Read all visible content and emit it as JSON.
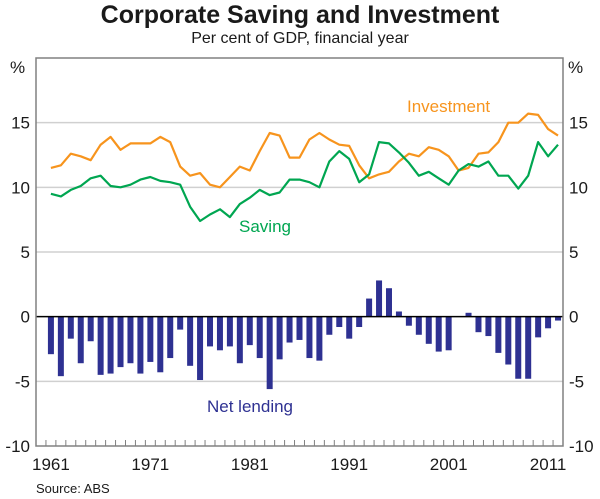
{
  "chart_data": {
    "type": "bar+line",
    "title": "Corporate Saving and Investment",
    "subtitle": "Per cent of GDP, financial year",
    "source": "Source: ABS",
    "ylabel_left": "%",
    "ylabel_right": "%",
    "ylim": [
      -10,
      20
    ],
    "yticks": [
      -10,
      -5,
      0,
      5,
      10,
      15
    ],
    "ytick_labels": [
      "-10",
      "-5",
      "0",
      "5",
      "10",
      "15"
    ],
    "xlim": [
      1960,
      2012
    ],
    "xticks": [
      1961,
      1971,
      1981,
      1991,
      2001,
      2011
    ],
    "xtick_labels": [
      "1961",
      "1971",
      "1981",
      "1991",
      "2001",
      "2011"
    ],
    "grid": true,
    "colors": {
      "investment": "#f7941d",
      "saving": "#00a651",
      "net_lending": "#2e3192",
      "grid": "#d0d0d0",
      "axis": "#808080",
      "zero": "#000000"
    },
    "annotations": [
      {
        "text": "Investment",
        "series": "investment"
      },
      {
        "text": "Saving",
        "series": "saving"
      },
      {
        "text": "Net lending",
        "series": "net_lending"
      }
    ],
    "series": [
      {
        "name": "Investment",
        "type": "line",
        "x": [
          1961,
          1962,
          1963,
          1964,
          1965,
          1966,
          1967,
          1968,
          1969,
          1970,
          1971,
          1972,
          1973,
          1974,
          1975,
          1976,
          1977,
          1978,
          1979,
          1980,
          1981,
          1982,
          1983,
          1984,
          1985,
          1986,
          1987,
          1988,
          1989,
          1990,
          1991,
          1992,
          1993,
          1994,
          1995,
          1996,
          1997,
          1998,
          1999,
          2000,
          2001,
          2002,
          2003,
          2004,
          2005,
          2006,
          2007,
          2008,
          2009,
          2010,
          2011,
          2012
        ],
        "values": [
          11.5,
          11.7,
          12.6,
          12.4,
          12.1,
          13.3,
          13.9,
          12.9,
          13.4,
          13.4,
          13.4,
          13.9,
          13.5,
          11.6,
          10.9,
          11.1,
          10.2,
          10.0,
          10.8,
          11.6,
          11.3,
          12.8,
          14.2,
          14.0,
          12.3,
          12.3,
          13.7,
          14.2,
          13.7,
          13.3,
          13.2,
          11.7,
          10.7,
          11.0,
          11.2,
          12.0,
          12.6,
          12.4,
          13.1,
          12.9,
          12.4,
          11.3,
          11.5,
          12.6,
          12.7,
          13.5,
          15.0,
          15.0,
          15.7,
          15.6,
          14.5,
          14.0
        ]
      },
      {
        "name": "Saving",
        "type": "line",
        "x": [
          1961,
          1962,
          1963,
          1964,
          1965,
          1966,
          1967,
          1968,
          1969,
          1970,
          1971,
          1972,
          1973,
          1974,
          1975,
          1976,
          1977,
          1978,
          1979,
          1980,
          1981,
          1982,
          1983,
          1984,
          1985,
          1986,
          1987,
          1988,
          1989,
          1990,
          1991,
          1992,
          1993,
          1994,
          1995,
          1996,
          1997,
          1998,
          1999,
          2000,
          2001,
          2002,
          2003,
          2004,
          2005,
          2006,
          2007,
          2008,
          2009,
          2010,
          2011,
          2012
        ],
        "values": [
          9.5,
          9.3,
          9.8,
          10.1,
          10.7,
          10.9,
          10.1,
          10.0,
          10.2,
          10.6,
          10.8,
          10.5,
          10.4,
          10.2,
          8.5,
          7.4,
          7.9,
          8.3,
          7.7,
          8.7,
          9.2,
          9.8,
          9.4,
          9.6,
          10.6,
          10.6,
          10.4,
          10.0,
          12.0,
          12.8,
          12.2,
          10.4,
          11.0,
          13.5,
          13.4,
          12.7,
          11.9,
          10.9,
          11.2,
          10.7,
          10.2,
          11.3,
          11.8,
          11.6,
          12.0,
          10.9,
          10.9,
          9.9,
          10.9,
          13.5,
          12.4,
          13.3
        ]
      },
      {
        "name": "Net lending",
        "type": "bar",
        "x": [
          1961,
          1962,
          1963,
          1964,
          1965,
          1966,
          1967,
          1968,
          1969,
          1970,
          1971,
          1972,
          1973,
          1974,
          1975,
          1976,
          1977,
          1978,
          1979,
          1980,
          1981,
          1982,
          1983,
          1984,
          1985,
          1986,
          1987,
          1988,
          1989,
          1990,
          1991,
          1992,
          1993,
          1994,
          1995,
          1996,
          1997,
          1998,
          1999,
          2000,
          2001,
          2002,
          2003,
          2004,
          2005,
          2006,
          2007,
          2008,
          2009,
          2010,
          2011,
          2012
        ],
        "values": [
          -2.9,
          -4.6,
          -1.7,
          -3.6,
          -1.9,
          -4.5,
          -4.4,
          -3.9,
          -3.6,
          -4.4,
          -3.5,
          -4.3,
          -3.2,
          -1.0,
          -3.8,
          -4.9,
          -2.3,
          -2.6,
          -2.3,
          -3.6,
          -2.2,
          -3.2,
          -5.6,
          -3.3,
          -2.0,
          -1.8,
          -3.2,
          -3.4,
          -1.4,
          -0.8,
          -1.7,
          -0.8,
          1.4,
          2.8,
          2.2,
          0.4,
          -0.7,
          -1.4,
          -2.1,
          -2.7,
          -2.6,
          0.0,
          0.3,
          -1.2,
          -1.5,
          -2.8,
          -3.7,
          -4.8,
          -4.8,
          -1.6,
          -0.9,
          -0.3
        ]
      }
    ]
  }
}
